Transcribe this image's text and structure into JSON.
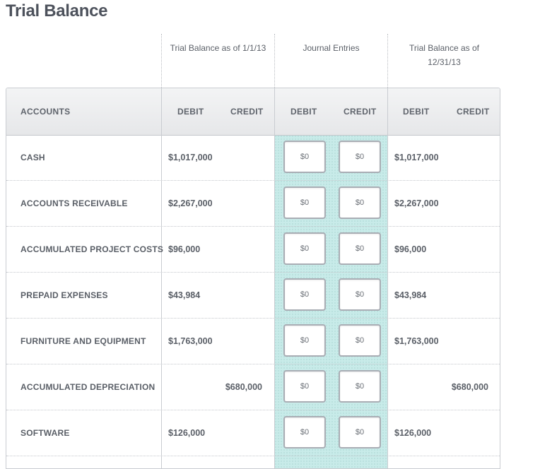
{
  "page_title": "Trial Balance",
  "period_headers": {
    "beginning": "Trial Balance as of 1/1/13",
    "journal": "Journal Entries",
    "ending_line1": "Trial Balance as of",
    "ending_line2": "12/31/13"
  },
  "columns": {
    "accounts": "ACCOUNTS",
    "begin_debit": "DEBIT",
    "begin_credit": "CREDIT",
    "journal_debit": "DEBIT",
    "journal_credit": "CREDIT",
    "end_debit": "DEBIT",
    "end_credit": "CREDIT"
  },
  "colors": {
    "journal_highlight": "#c8ebe9",
    "header_bg": "#e9eaec",
    "text": "#555a63"
  },
  "rows": [
    {
      "account": "CASH",
      "begin_debit": "$1,017,000",
      "begin_credit": "",
      "journal_debit": "$0",
      "journal_credit": "$0",
      "end_debit": "$1,017,000",
      "end_credit": ""
    },
    {
      "account": "ACCOUNTS RECEIVABLE",
      "begin_debit": "$2,267,000",
      "begin_credit": "",
      "journal_debit": "$0",
      "journal_credit": "$0",
      "end_debit": "$2,267,000",
      "end_credit": ""
    },
    {
      "account": "ACCUMULATED PROJECT COSTS",
      "begin_debit": "$96,000",
      "begin_credit": "",
      "journal_debit": "$0",
      "journal_credit": "$0",
      "end_debit": "$96,000",
      "end_credit": ""
    },
    {
      "account": "PREPAID EXPENSES",
      "begin_debit": "$43,984",
      "begin_credit": "",
      "journal_debit": "$0",
      "journal_credit": "$0",
      "end_debit": "$43,984",
      "end_credit": ""
    },
    {
      "account": "FURNITURE AND EQUIPMENT",
      "begin_debit": "$1,763,000",
      "begin_credit": "",
      "journal_debit": "$0",
      "journal_credit": "$0",
      "end_debit": "$1,763,000",
      "end_credit": ""
    },
    {
      "account": "ACCUMULATED DEPRECIATION",
      "begin_debit": "",
      "begin_credit": "$680,000",
      "journal_debit": "$0",
      "journal_credit": "$0",
      "end_debit": "",
      "end_credit": "$680,000"
    },
    {
      "account": "SOFTWARE",
      "begin_debit": "$126,000",
      "begin_credit": "",
      "journal_debit": "$0",
      "journal_credit": "$0",
      "end_debit": "$126,000",
      "end_credit": ""
    }
  ]
}
